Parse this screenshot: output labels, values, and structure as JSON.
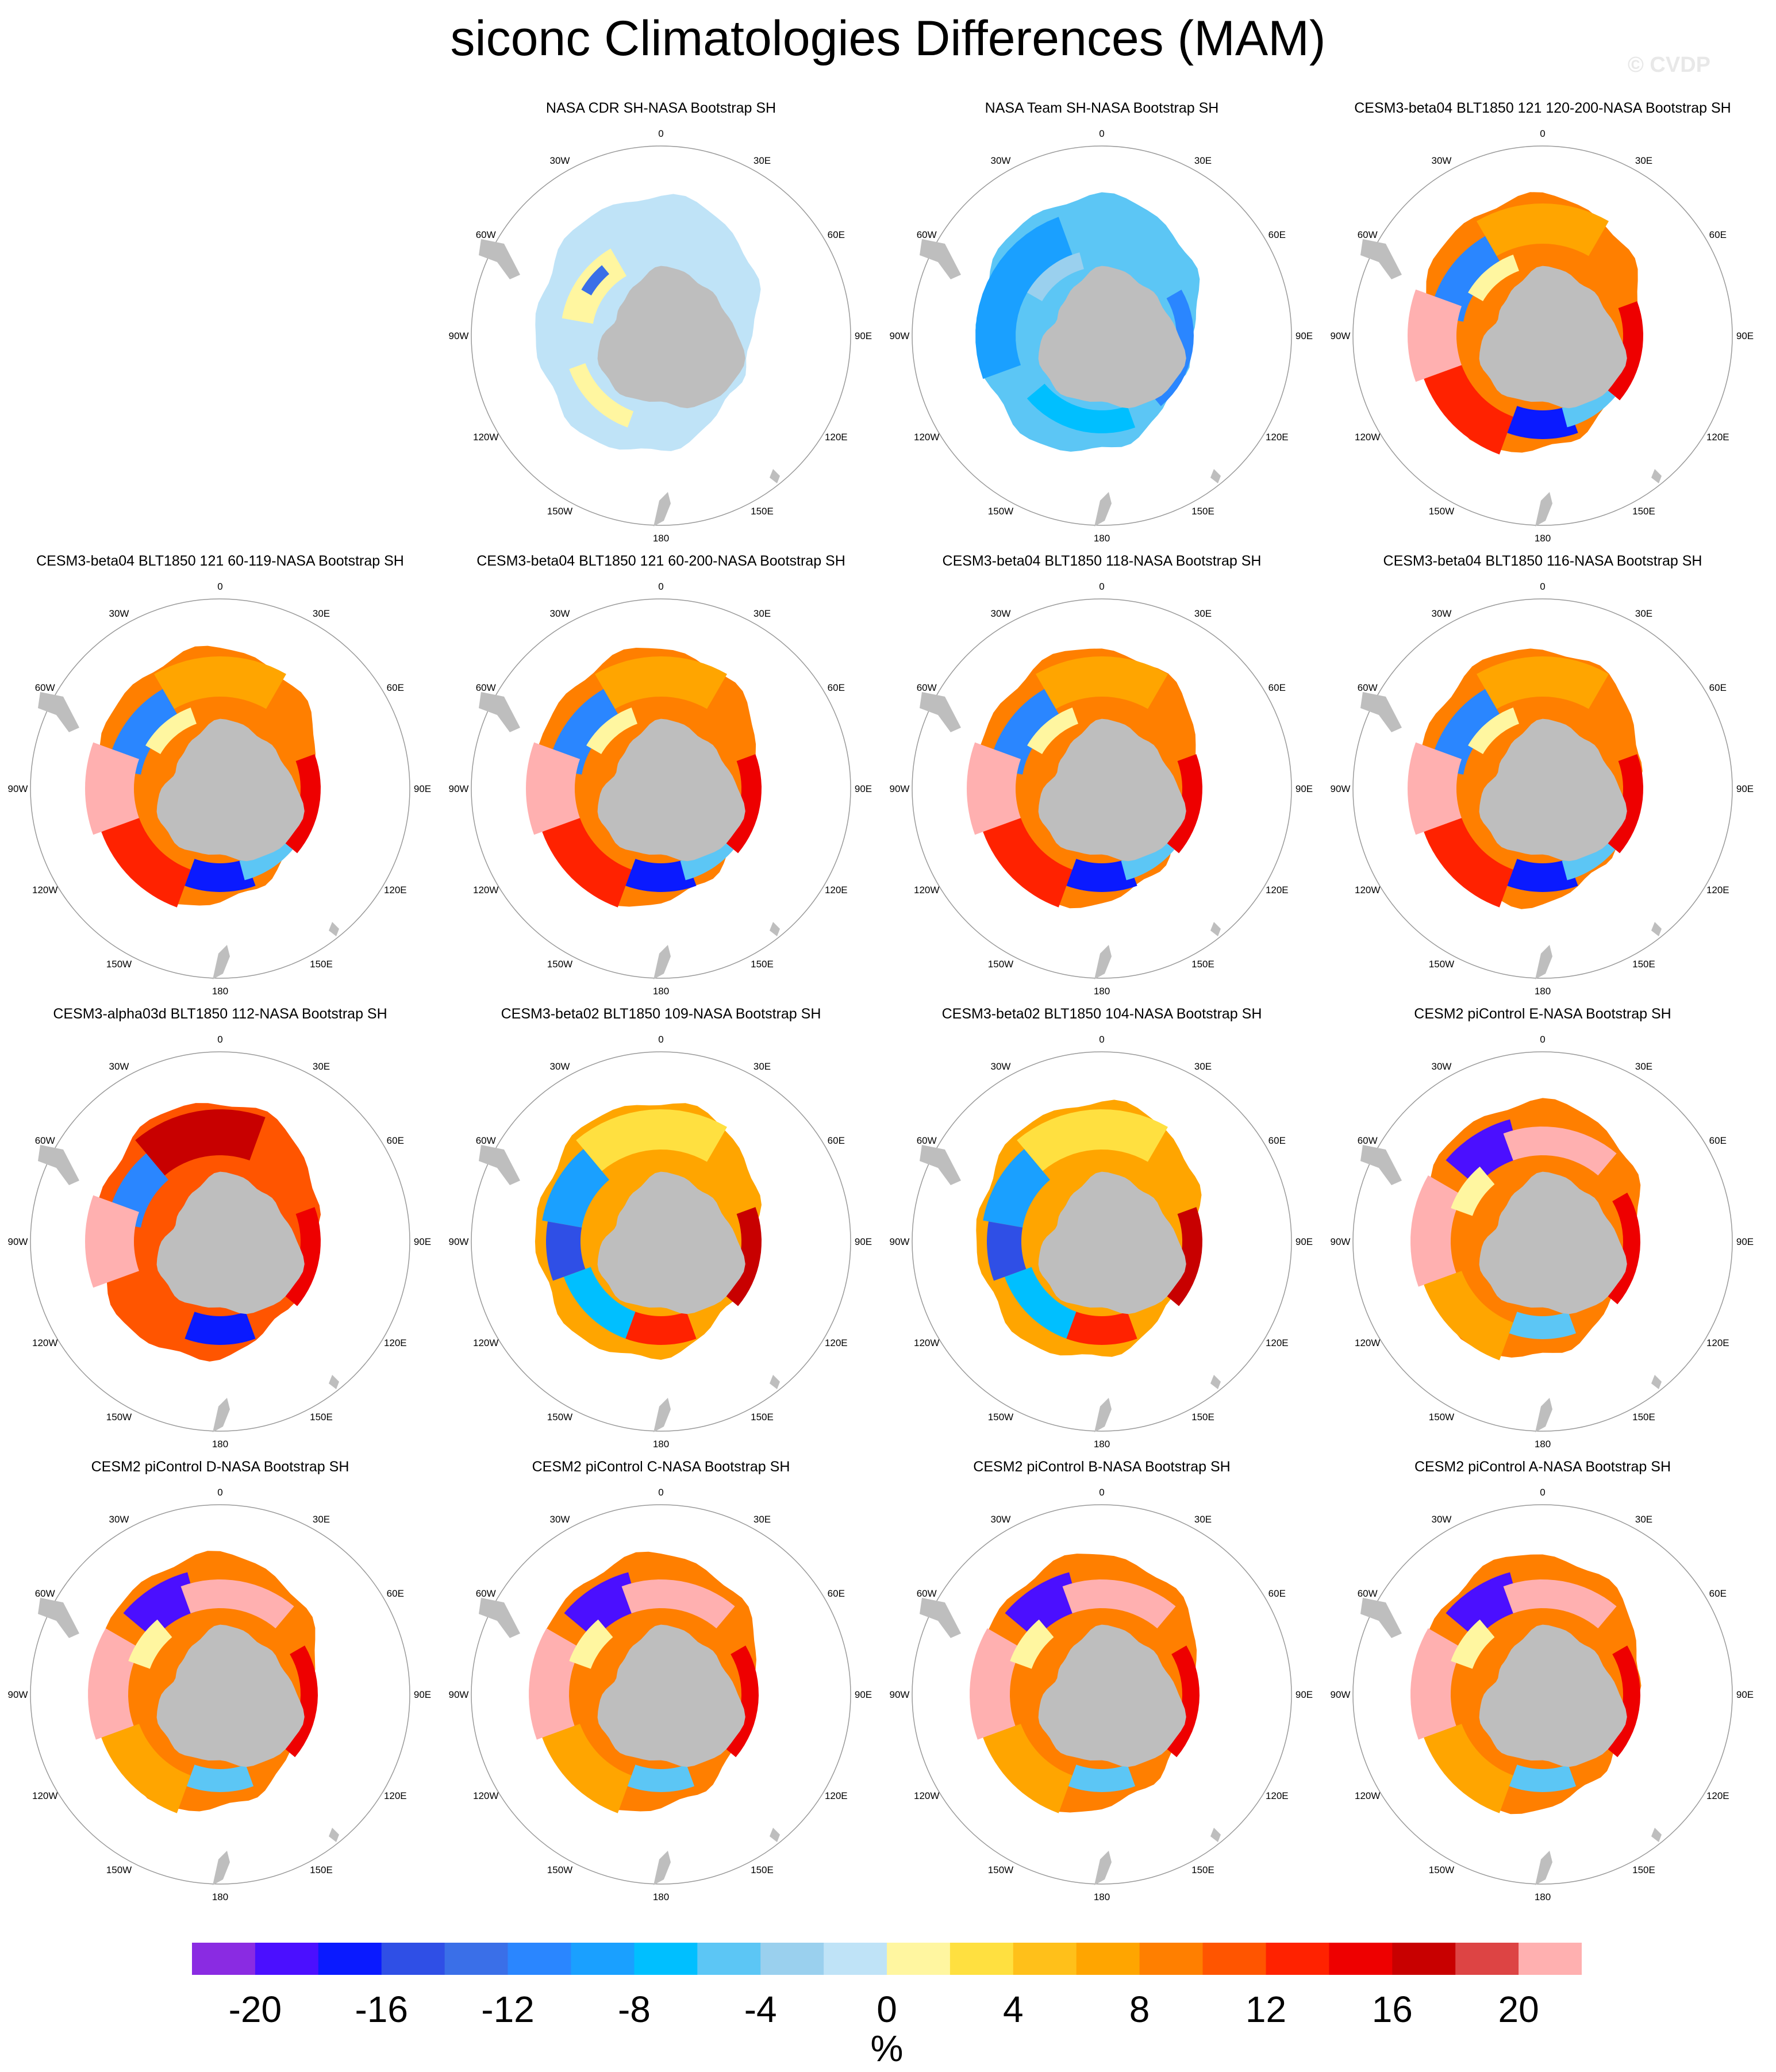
{
  "title": "siconc Climatologies Differences (MAM)",
  "watermark": "© CVDP",
  "lon_labels": [
    "0",
    "30E",
    "60E",
    "90E",
    "120E",
    "150E",
    "180",
    "150W",
    "120W",
    "90W",
    "60W",
    "30W"
  ],
  "panels": [
    {
      "title": "NASA CDR SH-NASA Bootstrap SH",
      "pattern": "cdr"
    },
    {
      "title": "NASA Team SH-NASA Bootstrap SH",
      "pattern": "team"
    },
    {
      "title": "CESM3-beta04 BLT1850 121 120-200-NASA Bootstrap SH",
      "pattern": "beta04"
    },
    {
      "title": "CESM3-beta04 BLT1850 121 60-119-NASA Bootstrap SH",
      "pattern": "beta04"
    },
    {
      "title": "CESM3-beta04 BLT1850 121 60-200-NASA Bootstrap SH",
      "pattern": "beta04"
    },
    {
      "title": "CESM3-beta04 BLT1850 118-NASA Bootstrap SH",
      "pattern": "beta04"
    },
    {
      "title": "CESM3-beta04 BLT1850 116-NASA Bootstrap SH",
      "pattern": "beta04"
    },
    {
      "title": "CESM3-alpha03d BLT1850 112-NASA Bootstrap SH",
      "pattern": "alpha"
    },
    {
      "title": "CESM3-beta02 BLT1850 109-NASA Bootstrap SH",
      "pattern": "beta02"
    },
    {
      "title": "CESM3-beta02 BLT1850 104-NASA Bootstrap SH",
      "pattern": "beta02"
    },
    {
      "title": "CESM2 piControl E-NASA Bootstrap SH",
      "pattern": "cesm2"
    },
    {
      "title": "CESM2 piControl D-NASA Bootstrap SH",
      "pattern": "cesm2"
    },
    {
      "title": "CESM2 piControl C-NASA Bootstrap SH",
      "pattern": "cesm2"
    },
    {
      "title": "CESM2 piControl B-NASA Bootstrap SH",
      "pattern": "cesm2"
    },
    {
      "title": "CESM2 piControl A-NASA Bootstrap SH",
      "pattern": "cesm2"
    }
  ],
  "colorbar": {
    "unit": "%",
    "ticks": [
      "-20",
      "-16",
      "-12",
      "-8",
      "-4",
      "0",
      "4",
      "8",
      "12",
      "16",
      "20"
    ],
    "colors": [
      "#8a2be2",
      "#4b0fff",
      "#0a1aff",
      "#2f4fe6",
      "#3a6fe8",
      "#2a86ff",
      "#1aa0ff",
      "#00bfff",
      "#5cc6f5",
      "#9ad0ee",
      "#bfe3f7",
      "#fff6a0",
      "#ffe040",
      "#ffc01a",
      "#ffa500",
      "#ff7f00",
      "#ff5500",
      "#ff2200",
      "#ee0000",
      "#c80000",
      "#dd4444",
      "#ffb0b0"
    ]
  },
  "land_color": "#bebebe",
  "ocean_color": "#ffffff"
}
